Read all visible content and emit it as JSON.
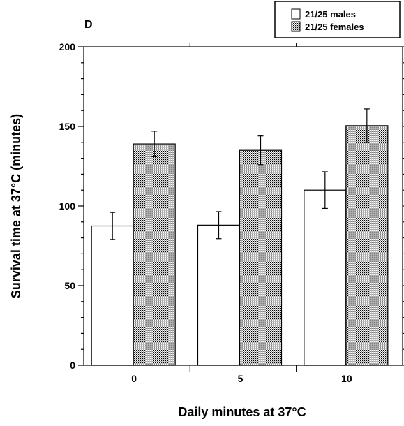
{
  "panel_label": "D",
  "chart_data": {
    "type": "bar",
    "xlabel": "Daily minutes at 37°C",
    "ylabel": "Survival time at 37°C (minutes)",
    "categories": [
      "0",
      "5",
      "10"
    ],
    "ylim": [
      0,
      200
    ],
    "yticks": [
      "0",
      "50",
      "100",
      "150",
      "200"
    ],
    "legend_position": "top-right",
    "series": [
      {
        "name": "21/25 males",
        "fill": "#ffffff",
        "pattern": "none",
        "values": [
          87.5,
          88,
          110
        ],
        "errors": [
          8.5,
          8.5,
          11.5
        ]
      },
      {
        "name": "21/25 females",
        "fill": "#bdbdbd",
        "pattern": "stipple",
        "values": [
          139,
          135,
          150.5
        ],
        "errors": [
          8,
          9,
          10.5
        ]
      }
    ]
  }
}
